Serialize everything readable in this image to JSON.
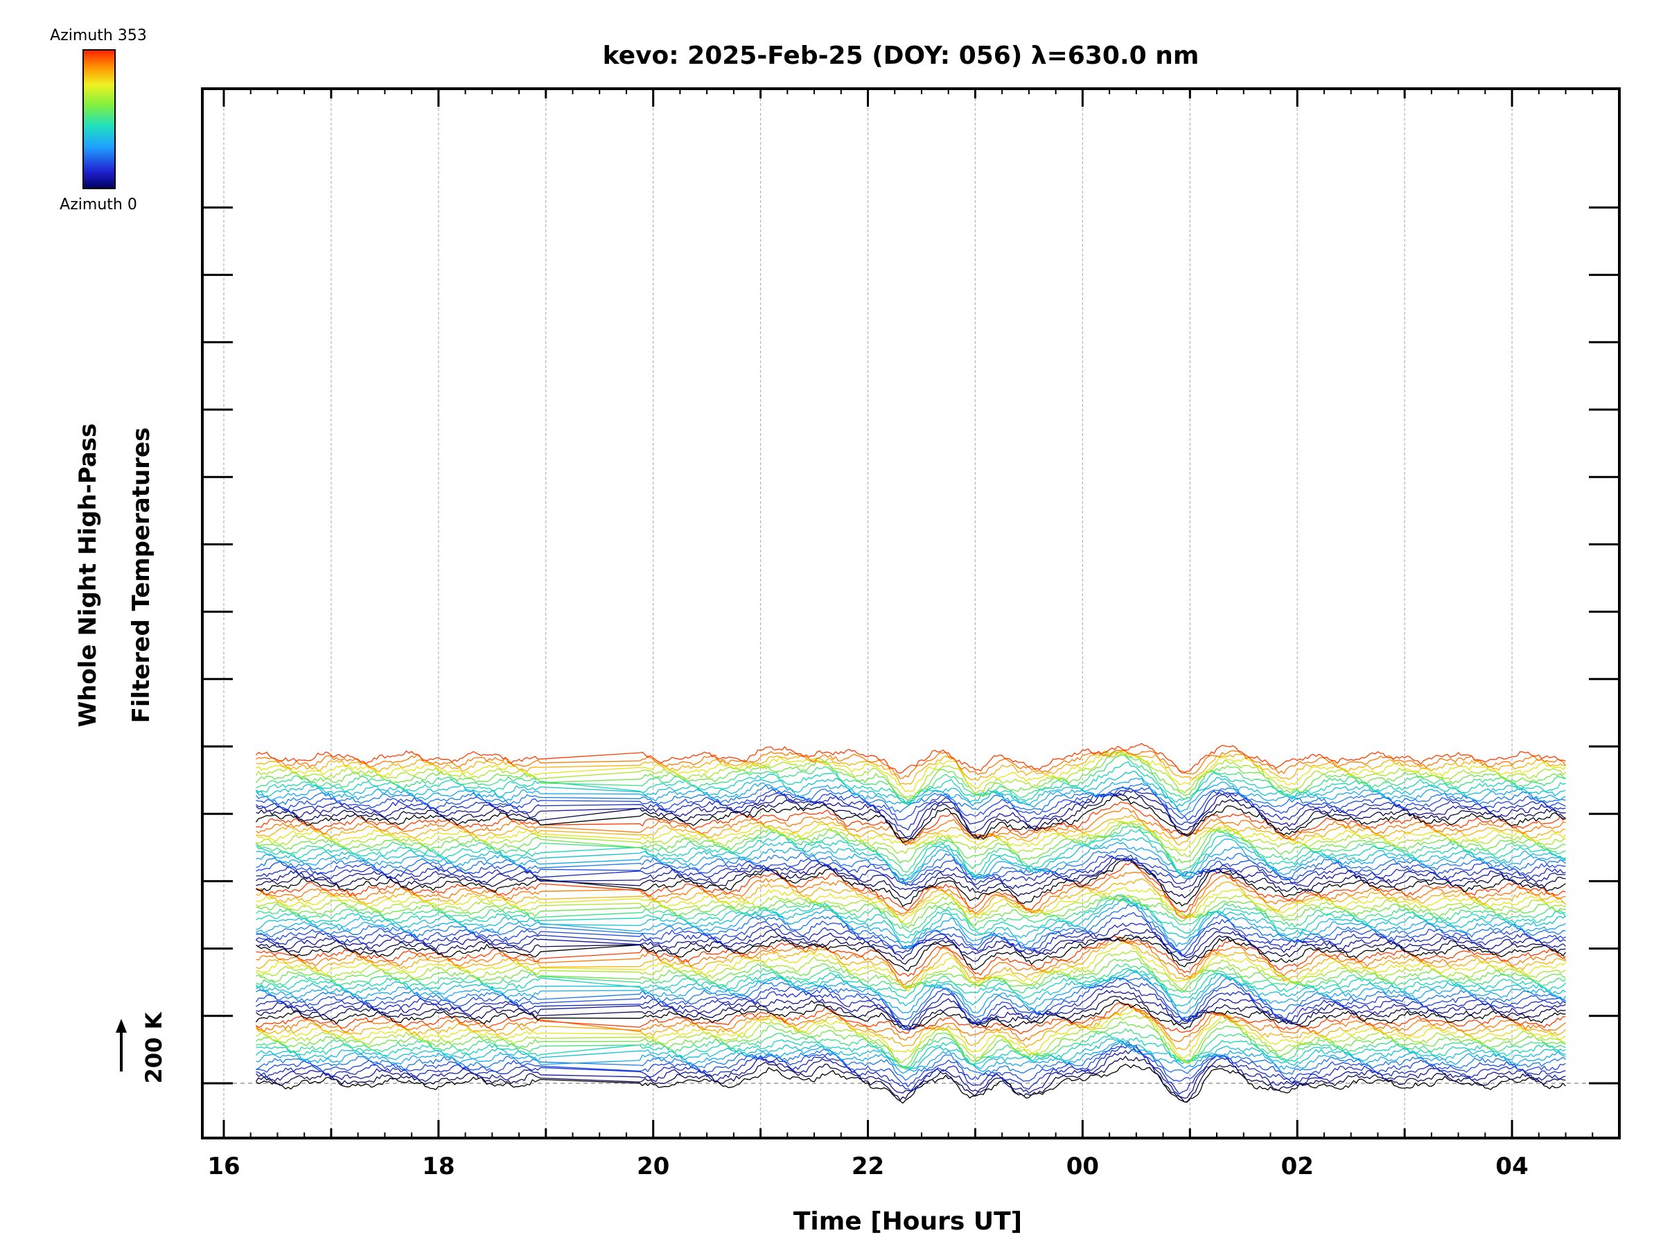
{
  "chart_data": {
    "type": "line",
    "title": "kevo: 2025-Feb-25 (DOY: 056) λ=630.0 nm",
    "xlabel": "Time [Hours UT]",
    "ylabel_line1": "Whole Night High-Pass",
    "ylabel_line2": "Filtered Temperatures",
    "x_tick_labels": [
      "16",
      "18",
      "20",
      "22",
      "00",
      "02",
      "04"
    ],
    "x_tick_hours": [
      16,
      18,
      20,
      22,
      24,
      26,
      28
    ],
    "xlim_hours": [
      15.8,
      29.0
    ],
    "data_start_hour": 16.3,
    "data_end_hour": 28.5,
    "gap_hours": [
      18.95,
      19.85
    ],
    "grid": "vertical dashed lines at each hour",
    "trace_offset_K": 200,
    "scale_bar_label": "200 K",
    "colorbar": {
      "top_label": "Azimuth 353",
      "bottom_label": "Azimuth 0",
      "colormap": "rainbow"
    },
    "series_groups": 5,
    "series_per_group": 16,
    "common_features": [
      {
        "hour": 21.1,
        "amplitude_K": 60,
        "width_h": 0.25
      },
      {
        "hour": 21.6,
        "amplitude_K": 60,
        "width_h": 0.2
      },
      {
        "hour": 22.35,
        "amplitude_K": -110,
        "width_h": 0.15
      },
      {
        "hour": 22.75,
        "amplitude_K": 40,
        "width_h": 0.15
      },
      {
        "hour": 23.0,
        "amplitude_K": -90,
        "width_h": 0.15
      },
      {
        "hour": 23.5,
        "amplitude_K": -70,
        "width_h": 0.2
      },
      {
        "hour": 24.4,
        "amplitude_K": 110,
        "width_h": 0.3
      },
      {
        "hour": 24.95,
        "amplitude_K": -110,
        "width_h": 0.18
      },
      {
        "hour": 25.3,
        "amplitude_K": 70,
        "width_h": 0.25
      },
      {
        "hour": 25.9,
        "amplitude_K": -60,
        "width_h": 0.2
      }
    ]
  },
  "colors": {
    "grid": "#b4b4b4",
    "axis": "#000000",
    "baseline": "#999999"
  }
}
